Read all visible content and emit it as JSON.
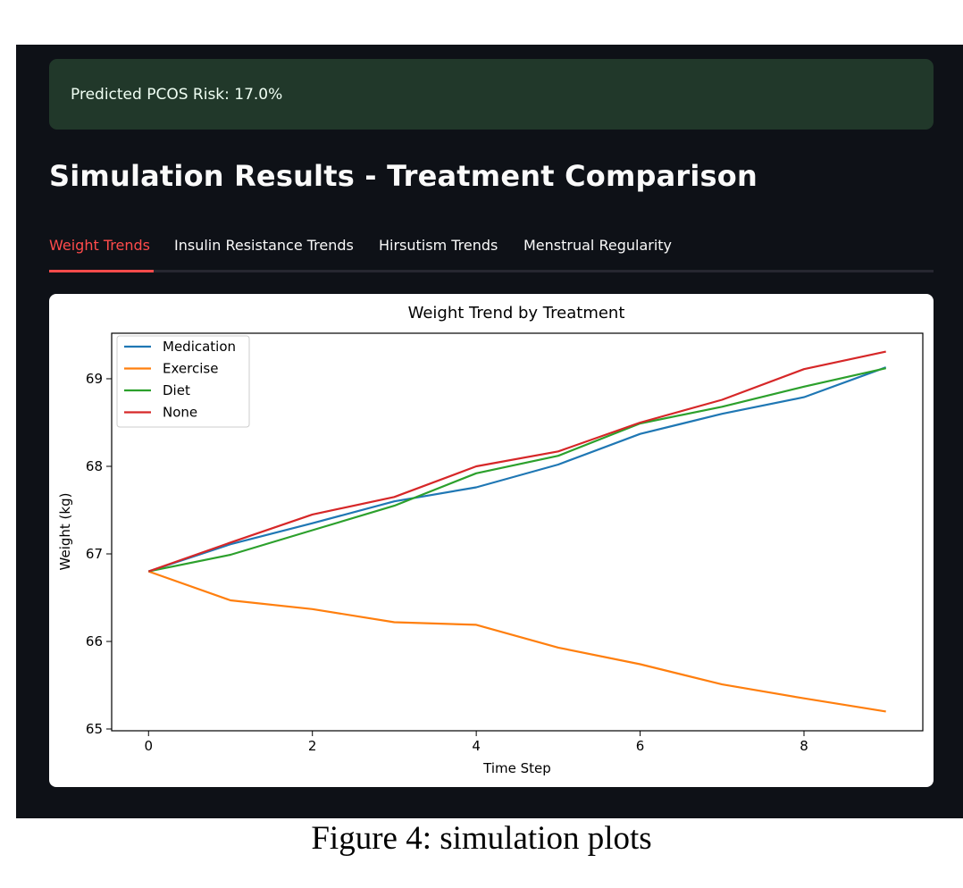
{
  "alert": {
    "text": "Predicted PCOS Risk: 17.0%"
  },
  "page_title": "Simulation Results - Treatment Comparison",
  "tabs": [
    {
      "label": "Weight Trends",
      "active": true
    },
    {
      "label": "Insulin Resistance Trends",
      "active": false
    },
    {
      "label": "Hirsutism Trends",
      "active": false
    },
    {
      "label": "Menstrual Regularity",
      "active": false
    }
  ],
  "caption": "Figure 4: simulation plots",
  "colors": {
    "accent": "#ff4b4b",
    "alert_bg": "#21382a",
    "app_bg": "#0e1117"
  },
  "chart_data": {
    "type": "line",
    "title": "Weight Trend by Treatment",
    "xlabel": "Time Step",
    "ylabel": "Weight (kg)",
    "x": [
      0,
      1,
      2,
      3,
      4,
      5,
      6,
      7,
      8,
      9
    ],
    "xlim": [
      -0.45,
      9.45
    ],
    "ylim": [
      64.98,
      69.52
    ],
    "xticks": [
      0,
      2,
      4,
      6,
      8
    ],
    "yticks": [
      65,
      66,
      67,
      68,
      69
    ],
    "grid": false,
    "legend_position": "top-left",
    "series": [
      {
        "name": "Medication",
        "color": "#1f77b4",
        "values": [
          66.8,
          67.11,
          67.35,
          67.6,
          67.76,
          68.02,
          68.37,
          68.6,
          68.79,
          69.13
        ]
      },
      {
        "name": "Exercise",
        "color": "#ff7f0e",
        "values": [
          66.8,
          66.47,
          66.37,
          66.22,
          66.19,
          65.93,
          65.74,
          65.51,
          65.35,
          65.2
        ]
      },
      {
        "name": "Diet",
        "color": "#2ca02c",
        "values": [
          66.8,
          66.99,
          67.27,
          67.55,
          67.92,
          68.12,
          68.49,
          68.68,
          68.91,
          69.12
        ]
      },
      {
        "name": "None",
        "color": "#d62728",
        "values": [
          66.8,
          67.13,
          67.45,
          67.65,
          68.0,
          68.17,
          68.5,
          68.76,
          69.11,
          69.31
        ]
      }
    ]
  }
}
